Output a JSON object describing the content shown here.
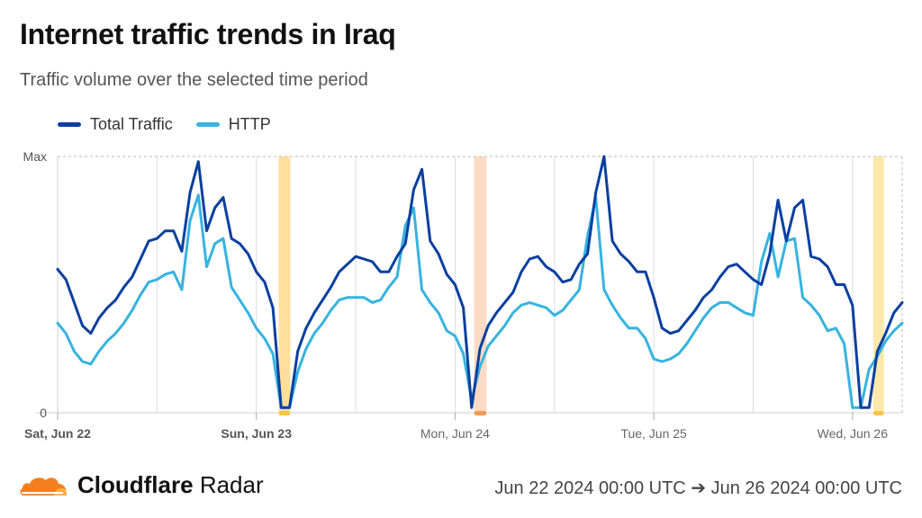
{
  "header": {
    "title": "Internet traffic trends in Iraq",
    "subtitle": "Traffic volume over the selected time period"
  },
  "footer": {
    "brand_bold": "Cloudflare",
    "brand_light": "Radar",
    "date_range": "Jun 22 2024 00:00 UTC ➔ Jun 26 2024 00:00 UTC"
  },
  "colors": {
    "total": "#0a3fa0",
    "http": "#36b3e0",
    "grid": "#dcdcdc",
    "axis_label": "#555555",
    "outage_yellow": "#ffd98a",
    "outage_orange": "#fbd3b8",
    "outage_marker_yellow": "#f6c44a",
    "outage_marker_orange": "#f19a56",
    "logo_orange": "#f38020",
    "logo_light": "#fbad41"
  },
  "chart_data": {
    "type": "line",
    "title": "Internet traffic trends in Iraq",
    "ylabel": "",
    "y_ticks": [
      "0",
      "Max"
    ],
    "ylim": [
      0,
      100
    ],
    "x_start": "2024-06-22T00:00Z",
    "x_end": "2024-06-26T07:00Z",
    "x_step_hours": 1,
    "x_tick_labels": [
      {
        "label": "Sat, Jun 22",
        "hour": 0,
        "bold": true
      },
      {
        "label": "Sun, Jun 23",
        "hour": 24,
        "bold": true
      },
      {
        "label": "Mon, Jun 24",
        "hour": 48,
        "bold": false
      },
      {
        "label": "Tue, Jun 25",
        "hour": 72,
        "bold": false
      },
      {
        "label": "Wed, Jun 26",
        "hour": 96,
        "bold": false
      }
    ],
    "legend": {
      "position": "top-left"
    },
    "grid": true,
    "series": [
      {
        "name": "Total Traffic",
        "color": "#0a3fa0",
        "values": [
          56,
          52,
          43,
          34,
          31,
          37,
          41,
          44,
          49,
          53,
          60,
          67,
          68,
          71,
          71,
          63,
          86,
          98,
          71,
          80,
          84,
          68,
          66,
          62,
          55,
          51,
          41,
          2,
          2,
          24,
          33,
          39,
          44,
          49,
          55,
          58,
          61,
          60,
          59,
          55,
          55,
          61,
          66,
          87,
          95,
          67,
          62,
          54,
          50,
          41,
          2,
          25,
          34,
          39,
          43,
          47,
          55,
          60,
          61,
          57,
          55,
          51,
          52,
          58,
          62,
          86,
          100,
          67,
          62,
          59,
          55,
          55,
          45,
          33,
          31,
          32,
          36,
          40,
          45,
          48,
          53,
          57,
          58,
          55,
          52,
          50,
          62,
          83,
          67,
          80,
          83,
          61,
          60,
          57,
          50,
          50,
          42,
          2,
          2,
          24,
          31,
          39,
          43
        ],
        "outlier": "none"
      },
      {
        "name": "HTTP",
        "color": "#36b3e0",
        "values": [
          35,
          31,
          24,
          20,
          19,
          24,
          28,
          31,
          35,
          40,
          46,
          51,
          52,
          54,
          55,
          48,
          75,
          85,
          57,
          66,
          68,
          49,
          44,
          39,
          33,
          29,
          23,
          2,
          2,
          16,
          25,
          31,
          35,
          40,
          44,
          45,
          45,
          45,
          43,
          44,
          49,
          53,
          73,
          80,
          48,
          43,
          39,
          32,
          30,
          23,
          5,
          18,
          26,
          30,
          34,
          39,
          42,
          43,
          42,
          41,
          38,
          40,
          44,
          48,
          69,
          84,
          48,
          42,
          37,
          33,
          33,
          29,
          21,
          20,
          21,
          23,
          27,
          32,
          37,
          41,
          43,
          43,
          41,
          39,
          38,
          59,
          70,
          53,
          67,
          68,
          45,
          42,
          38,
          32,
          33,
          27,
          2,
          2,
          17,
          22,
          28,
          32,
          35
        ],
        "outlier": "none"
      }
    ],
    "outage_bands": [
      {
        "start_hour": 26.7,
        "end_hour": 28.1,
        "color": "#ffd98a"
      },
      {
        "start_hour": 50.3,
        "end_hour": 51.8,
        "color": "#fbd3b8"
      },
      {
        "start_hour": 98.5,
        "end_hour": 99.8,
        "color": "#ffe49a"
      }
    ]
  }
}
